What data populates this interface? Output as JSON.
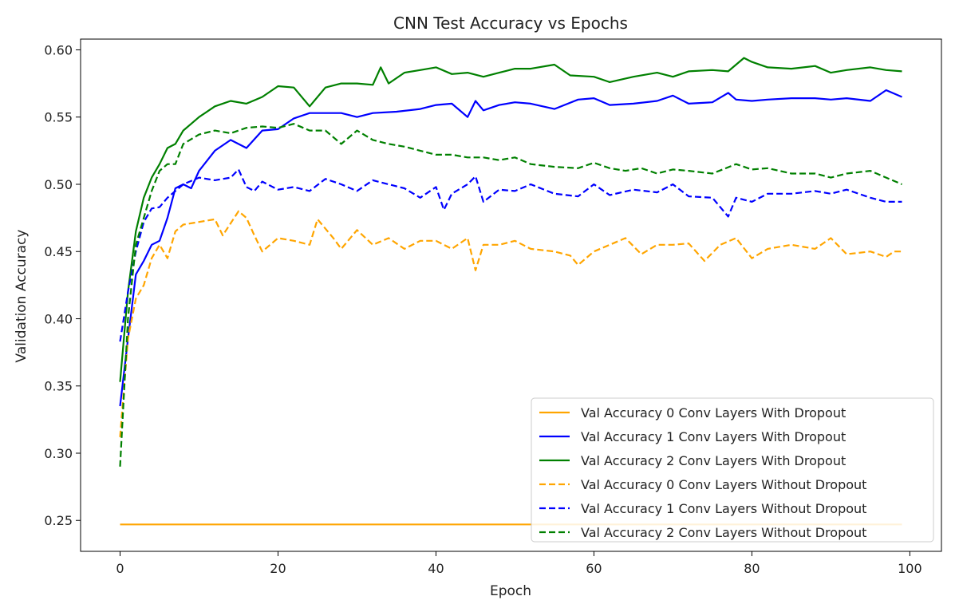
{
  "chart_data": {
    "type": "line",
    "title": "CNN Test Accuracy vs Epochs",
    "xlabel": "Epoch",
    "ylabel": "Validation Accuracy",
    "xlim": [
      -5,
      104
    ],
    "ylim": [
      0.227,
      0.608
    ],
    "xticks": [
      0,
      20,
      40,
      60,
      80,
      100
    ],
    "yticks": [
      0.25,
      0.3,
      0.35,
      0.4,
      0.45,
      0.5,
      0.55,
      0.6
    ],
    "ytick_labels": [
      "0.25",
      "0.30",
      "0.35",
      "0.40",
      "0.45",
      "0.50",
      "0.55",
      "0.60"
    ],
    "grid": false,
    "legend_position": "lower-right",
    "series": [
      {
        "name": "Val Accuracy 0 Conv Layers With Dropout",
        "color": "#FFA500",
        "dash": "solid",
        "x": [
          0,
          99
        ],
        "y": [
          0.247,
          0.247
        ]
      },
      {
        "name": "Val Accuracy 1 Conv Layers With Dropout",
        "color": "#0000FF",
        "dash": "solid",
        "x": [
          0,
          1,
          2,
          3,
          4,
          5,
          6,
          7,
          8,
          9,
          10,
          12,
          14,
          16,
          18,
          20,
          22,
          24,
          26,
          28,
          30,
          32,
          35,
          38,
          40,
          42,
          44,
          45,
          46,
          48,
          50,
          52,
          55,
          58,
          60,
          62,
          65,
          68,
          70,
          72,
          75,
          77,
          78,
          80,
          82,
          85,
          88,
          90,
          92,
          95,
          97,
          99
        ],
        "y": [
          0.335,
          0.385,
          0.433,
          0.443,
          0.455,
          0.458,
          0.475,
          0.497,
          0.5,
          0.497,
          0.51,
          0.525,
          0.533,
          0.527,
          0.54,
          0.541,
          0.549,
          0.553,
          0.553,
          0.553,
          0.55,
          0.553,
          0.554,
          0.556,
          0.559,
          0.56,
          0.55,
          0.562,
          0.555,
          0.559,
          0.561,
          0.56,
          0.556,
          0.563,
          0.564,
          0.559,
          0.56,
          0.562,
          0.566,
          0.56,
          0.561,
          0.568,
          0.563,
          0.562,
          0.563,
          0.564,
          0.564,
          0.563,
          0.564,
          0.562,
          0.57,
          0.565
        ]
      },
      {
        "name": "Val Accuracy 2 Conv Layers With Dropout",
        "color": "#008000",
        "dash": "solid",
        "x": [
          0,
          1,
          2,
          3,
          4,
          5,
          6,
          7,
          8,
          9,
          10,
          12,
          14,
          16,
          18,
          20,
          22,
          24,
          26,
          28,
          30,
          32,
          33,
          34,
          36,
          38,
          40,
          42,
          44,
          46,
          48,
          50,
          52,
          55,
          57,
          60,
          62,
          65,
          68,
          70,
          72,
          75,
          77,
          79,
          80,
          82,
          85,
          88,
          90,
          92,
          95,
          97,
          99
        ],
        "y": [
          0.353,
          0.42,
          0.465,
          0.49,
          0.505,
          0.515,
          0.527,
          0.53,
          0.54,
          0.545,
          0.55,
          0.558,
          0.562,
          0.56,
          0.565,
          0.573,
          0.572,
          0.558,
          0.572,
          0.575,
          0.575,
          0.574,
          0.587,
          0.575,
          0.583,
          0.585,
          0.587,
          0.582,
          0.583,
          0.58,
          0.583,
          0.586,
          0.586,
          0.589,
          0.581,
          0.58,
          0.576,
          0.58,
          0.583,
          0.58,
          0.584,
          0.585,
          0.584,
          0.594,
          0.591,
          0.587,
          0.586,
          0.588,
          0.583,
          0.585,
          0.587,
          0.585,
          0.584
        ]
      },
      {
        "name": "Val Accuracy 0 Conv Layers Without Dropout",
        "color": "#FFA500",
        "dash": "dashed",
        "x": [
          0,
          1,
          2,
          3,
          4,
          5,
          6,
          7,
          8,
          10,
          12,
          13,
          15,
          16,
          17,
          18,
          20,
          22,
          24,
          25,
          27,
          28,
          30,
          32,
          34,
          36,
          38,
          40,
          42,
          44,
          45,
          46,
          48,
          50,
          52,
          55,
          57,
          58,
          60,
          62,
          64,
          66,
          68,
          70,
          72,
          74,
          76,
          78,
          80,
          82,
          85,
          88,
          90,
          92,
          95,
          97,
          98,
          99
        ],
        "y": [
          0.312,
          0.385,
          0.415,
          0.425,
          0.445,
          0.455,
          0.445,
          0.465,
          0.47,
          0.472,
          0.474,
          0.462,
          0.48,
          0.475,
          0.462,
          0.45,
          0.46,
          0.458,
          0.455,
          0.474,
          0.46,
          0.452,
          0.466,
          0.455,
          0.46,
          0.452,
          0.458,
          0.458,
          0.452,
          0.46,
          0.436,
          0.455,
          0.455,
          0.458,
          0.452,
          0.45,
          0.447,
          0.44,
          0.45,
          0.455,
          0.46,
          0.448,
          0.455,
          0.455,
          0.456,
          0.443,
          0.455,
          0.46,
          0.445,
          0.452,
          0.455,
          0.452,
          0.46,
          0.448,
          0.45,
          0.446,
          0.45,
          0.45
        ]
      },
      {
        "name": "Val Accuracy 1 Conv Layers Without Dropout",
        "color": "#0000FF",
        "dash": "dashed",
        "x": [
          0,
          1,
          2,
          3,
          4,
          5,
          6,
          7,
          8,
          10,
          12,
          14,
          15,
          16,
          17,
          18,
          20,
          22,
          24,
          26,
          28,
          30,
          32,
          34,
          36,
          38,
          40,
          41,
          42,
          44,
          45,
          46,
          48,
          50,
          52,
          55,
          58,
          60,
          62,
          65,
          68,
          70,
          72,
          75,
          77,
          78,
          80,
          82,
          85,
          88,
          90,
          92,
          95,
          97,
          99
        ],
        "y": [
          0.383,
          0.42,
          0.45,
          0.472,
          0.482,
          0.483,
          0.49,
          0.495,
          0.5,
          0.505,
          0.503,
          0.505,
          0.511,
          0.498,
          0.495,
          0.502,
          0.496,
          0.498,
          0.495,
          0.504,
          0.5,
          0.495,
          0.503,
          0.5,
          0.497,
          0.49,
          0.498,
          0.481,
          0.493,
          0.5,
          0.506,
          0.487,
          0.496,
          0.495,
          0.5,
          0.493,
          0.491,
          0.5,
          0.492,
          0.496,
          0.494,
          0.5,
          0.491,
          0.49,
          0.476,
          0.49,
          0.487,
          0.493,
          0.493,
          0.495,
          0.493,
          0.496,
          0.49,
          0.487,
          0.487
        ]
      },
      {
        "name": "Val Accuracy 2 Conv Layers Without Dropout",
        "color": "#008000",
        "dash": "dashed",
        "x": [
          0,
          1,
          2,
          3,
          4,
          5,
          6,
          7,
          8,
          10,
          12,
          14,
          16,
          18,
          20,
          22,
          24,
          26,
          28,
          30,
          32,
          34,
          36,
          38,
          40,
          42,
          44,
          46,
          48,
          50,
          52,
          55,
          58,
          60,
          62,
          64,
          66,
          68,
          70,
          72,
          75,
          78,
          80,
          82,
          85,
          88,
          90,
          92,
          95,
          97,
          99
        ],
        "y": [
          0.29,
          0.4,
          0.455,
          0.475,
          0.495,
          0.51,
          0.515,
          0.515,
          0.53,
          0.537,
          0.54,
          0.538,
          0.542,
          0.543,
          0.542,
          0.545,
          0.54,
          0.54,
          0.53,
          0.54,
          0.533,
          0.53,
          0.528,
          0.525,
          0.522,
          0.522,
          0.52,
          0.52,
          0.518,
          0.52,
          0.515,
          0.513,
          0.512,
          0.516,
          0.512,
          0.51,
          0.512,
          0.508,
          0.511,
          0.51,
          0.508,
          0.515,
          0.511,
          0.512,
          0.508,
          0.508,
          0.505,
          0.508,
          0.51,
          0.505,
          0.5
        ]
      }
    ]
  }
}
